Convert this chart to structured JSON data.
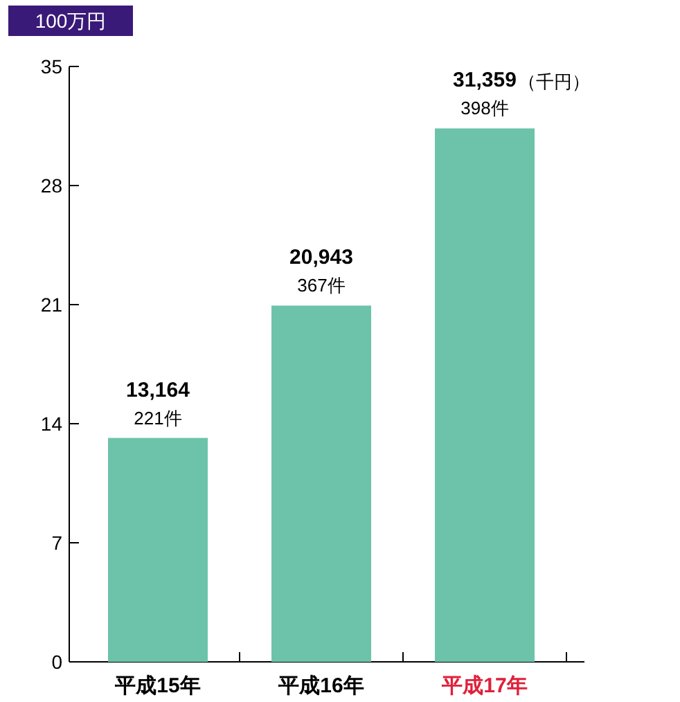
{
  "chart_data": {
    "type": "bar",
    "ylabel": "100万円",
    "categories": [
      "平成15年",
      "平成16年",
      "平成17年"
    ],
    "values": [
      13.164,
      20.943,
      31.359
    ],
    "color": "#6cc3aa",
    "ylim": [
      0,
      35
    ],
    "yticks": [
      0,
      7,
      14,
      21,
      28,
      35
    ],
    "annotations": [
      {
        "text": "13,164",
        "x": "平成15年",
        "y": 13.164
      },
      {
        "text": "221件",
        "x": "平成15年",
        "y": 13.164
      },
      {
        "text": "20,943",
        "x": "平成16年",
        "y": 20.943
      },
      {
        "text": "367件",
        "x": "平成16年",
        "y": 20.943
      },
      {
        "text": "31,359",
        "x": "平成17年",
        "y": 31.359
      },
      {
        "text": "398件",
        "x": "平成17年",
        "y": 31.359
      },
      "（千円）"
    ]
  }
}
